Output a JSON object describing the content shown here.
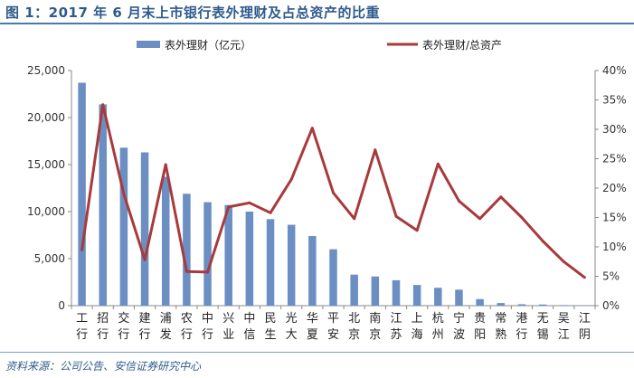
{
  "title": "图 1：2017 年 6 月末上市银行表外理财及占总资产的比重",
  "source": "资料来源：公司公告、安信证券研究中心",
  "colors": {
    "bar": "#6b8fc3",
    "line": "#a83a3c",
    "title": "#2f5b8c"
  },
  "chart_data": {
    "type": "bar+line",
    "categories": [
      "工行",
      "招行",
      "交行",
      "建行",
      "浦发",
      "农行",
      "中行",
      "兴业",
      "中信",
      "民生",
      "光大",
      "华夏",
      "平安",
      "北京",
      "南京",
      "江苏",
      "上海",
      "杭州",
      "宁波",
      "贵阳",
      "常熟",
      "港行",
      "无锡",
      "吴江",
      "江阴"
    ],
    "category_labels": [
      [
        "工",
        "行"
      ],
      [
        "招",
        "行"
      ],
      [
        "交",
        "行"
      ],
      [
        "建",
        "行"
      ],
      [
        "浦",
        "发"
      ],
      [
        "农",
        "行"
      ],
      [
        "中",
        "行"
      ],
      [
        "兴",
        "业"
      ],
      [
        "中",
        "信"
      ],
      [
        "民",
        "生"
      ],
      [
        "光",
        "大"
      ],
      [
        "华",
        "夏"
      ],
      [
        "平",
        "安"
      ],
      [
        "北",
        "京"
      ],
      [
        "南",
        "京"
      ],
      [
        "江",
        "苏"
      ],
      [
        "上",
        "海"
      ],
      [
        "杭",
        "州"
      ],
      [
        "宁",
        "波"
      ],
      [
        "贵",
        "阳"
      ],
      [
        "常",
        "熟"
      ],
      [
        "港",
        "行"
      ],
      [
        "无",
        "锡"
      ],
      [
        "吴",
        "江"
      ],
      [
        "江",
        "阴"
      ]
    ],
    "series": [
      {
        "name": "表外理财（亿元）",
        "type": "bar",
        "axis": "left",
        "values": [
          23700,
          21400,
          16800,
          16300,
          13700,
          11900,
          11000,
          10700,
          10000,
          9200,
          8600,
          7400,
          6000,
          3300,
          3100,
          2700,
          2200,
          1900,
          1700,
          700,
          280,
          150,
          120,
          60,
          40
        ]
      },
      {
        "name": "表外理财/总资产",
        "type": "line",
        "axis": "right",
        "values": [
          9.5,
          34.2,
          19.0,
          7.8,
          24.0,
          5.8,
          5.7,
          16.8,
          17.5,
          15.8,
          21.5,
          30.2,
          19.2,
          14.8,
          26.5,
          15.2,
          12.8,
          24.1,
          17.8,
          14.8,
          18.5,
          15.0,
          11.0,
          7.5,
          4.8
        ]
      }
    ],
    "y_left": {
      "min": 0,
      "max": 25000,
      "ticks": [
        0,
        5000,
        10000,
        15000,
        20000,
        25000
      ],
      "tick_labels": [
        "0",
        "5,000",
        "10,000",
        "15,000",
        "20,000",
        "25,000"
      ]
    },
    "y_right": {
      "min": 0,
      "max": 40,
      "ticks": [
        0,
        5,
        10,
        15,
        20,
        25,
        30,
        35,
        40
      ],
      "tick_labels": [
        "0%",
        "5%",
        "10%",
        "15%",
        "20%",
        "25%",
        "30%",
        "35%",
        "40%"
      ]
    },
    "legend": {
      "placement": "top",
      "entries": [
        "表外理财（亿元）",
        "表外理财/总资产"
      ]
    },
    "grid": false
  }
}
